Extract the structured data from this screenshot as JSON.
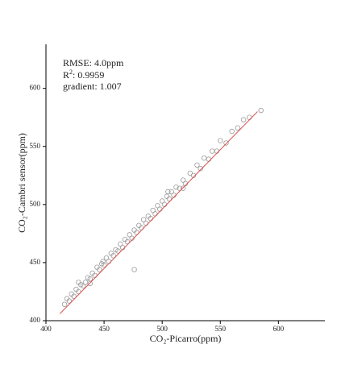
{
  "chart_data": {
    "type": "scatter",
    "xlabel": "CO₂-Picarro(ppm)",
    "ylabel": "CO₂-Cambri sensor(ppm)",
    "annotations": [
      "RMSE: 4.0ppm",
      "R",
      "2",
      ": 0.9959",
      "gradient: 1.007"
    ],
    "xlim": [
      400,
      640
    ],
    "ylim": [
      400,
      640
    ],
    "xticks": [
      400,
      450,
      500,
      550,
      600
    ],
    "yticks": [
      400,
      450,
      500,
      550,
      600
    ],
    "color": "#9a9a9a",
    "x": [
      416,
      418,
      420,
      422,
      424,
      426,
      428,
      430,
      432,
      434,
      436,
      438,
      440,
      442,
      444,
      446,
      448,
      450,
      452,
      454,
      456,
      458,
      460,
      462,
      464,
      466,
      468,
      470,
      472,
      474,
      476,
      478,
      480,
      482,
      484,
      486,
      488,
      490,
      492,
      494,
      496,
      498,
      500,
      502,
      504,
      506,
      508,
      510,
      512,
      515,
      518,
      520,
      524,
      527,
      530,
      533,
      536,
      540,
      543,
      547,
      550,
      555,
      560,
      565,
      570,
      575,
      449,
      476,
      585,
      428,
      438,
      505,
      518
    ],
    "values": [
      414,
      419,
      417,
      423,
      421,
      427,
      425,
      431,
      430,
      433,
      437,
      436,
      441,
      439,
      446,
      444,
      449,
      448,
      454,
      451,
      458,
      456,
      461,
      460,
      466,
      463,
      470,
      468,
      474,
      471,
      478,
      476,
      482,
      480,
      487,
      484,
      490,
      488,
      495,
      492,
      499,
      496,
      503,
      500,
      507,
      505,
      511,
      508,
      515,
      514,
      521,
      518,
      527,
      525,
      534,
      531,
      540,
      539,
      546,
      546,
      555,
      553,
      563,
      566,
      573,
      575,
      451,
      444,
      581,
      433,
      432,
      511,
      514
    ],
    "fit": {
      "x": [
        412,
        582
      ],
      "values": [
        406,
        580
      ],
      "color": "#d9534f"
    }
  }
}
